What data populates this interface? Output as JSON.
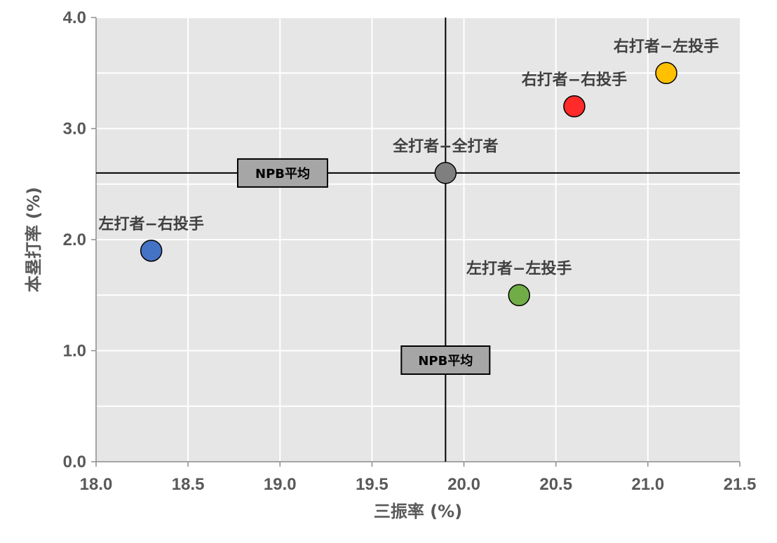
{
  "chart_data": {
    "type": "scatter",
    "title": "",
    "xlabel": "三振率 (%)",
    "ylabel": "本塁打率 (%)",
    "xlim": [
      18.0,
      21.5
    ],
    "ylim": [
      0.0,
      4.0
    ],
    "x_ticks": [
      "18.0",
      "18.5",
      "19.0",
      "19.5",
      "20.0",
      "20.5",
      "21.0",
      "21.5"
    ],
    "y_ticks": [
      "0.0",
      "1.0",
      "2.0",
      "3.0",
      "4.0"
    ],
    "grid": true,
    "minor_grid_y_step": 0.5,
    "plot_background": "#e7e6e6",
    "points": [
      {
        "label": "左打者−右投手",
        "x": 18.3,
        "y": 1.9,
        "color": "#4472c4",
        "label_pos": "above"
      },
      {
        "label": "左打者−左投手",
        "x": 20.3,
        "y": 1.5,
        "color": "#70ad47",
        "label_pos": "above"
      },
      {
        "label": "全打者−全打者",
        "x": 19.9,
        "y": 2.6,
        "color": "#7f7f7f",
        "label_pos": "above"
      },
      {
        "label": "右打者−右投手",
        "x": 20.6,
        "y": 3.2,
        "color": "#ff2b2b",
        "label_pos": "above"
      },
      {
        "label": "右打者−左投手",
        "x": 21.1,
        "y": 3.5,
        "color": "#ffc000",
        "label_pos": "above"
      }
    ],
    "reference_lines": [
      {
        "orientation": "vertical",
        "value": 19.9,
        "label": "NPB平均"
      },
      {
        "orientation": "horizontal",
        "value": 2.6,
        "label": "NPB平均"
      }
    ]
  }
}
